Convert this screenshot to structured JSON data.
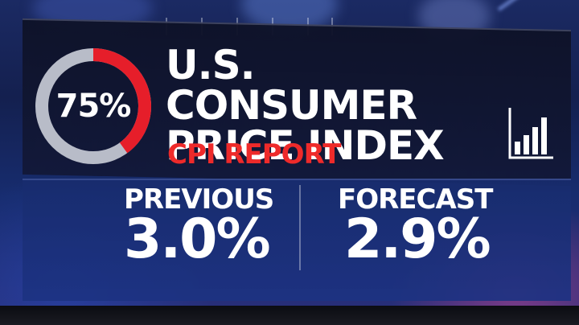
{
  "gauge": {
    "percent_label": "75%",
    "percent_value": 75,
    "track_color": "#b8bcc8",
    "fill_color": "#e61e2a"
  },
  "header": {
    "title_line1": "U.S. CONSUMER",
    "title_line2": "PRICE INDEX",
    "subtitle": "CPI REPORT"
  },
  "stats": {
    "previous": {
      "label": "PREVIOUS",
      "value": "3.0%"
    },
    "forecast": {
      "label": "FORECAST",
      "value": "2.9%"
    }
  },
  "icons": {
    "chart": "bar-chart-icon"
  },
  "colors": {
    "accent_red": "#e61e2a",
    "panel_dark": "#0e1228",
    "panel_blue": "#1c3282"
  }
}
